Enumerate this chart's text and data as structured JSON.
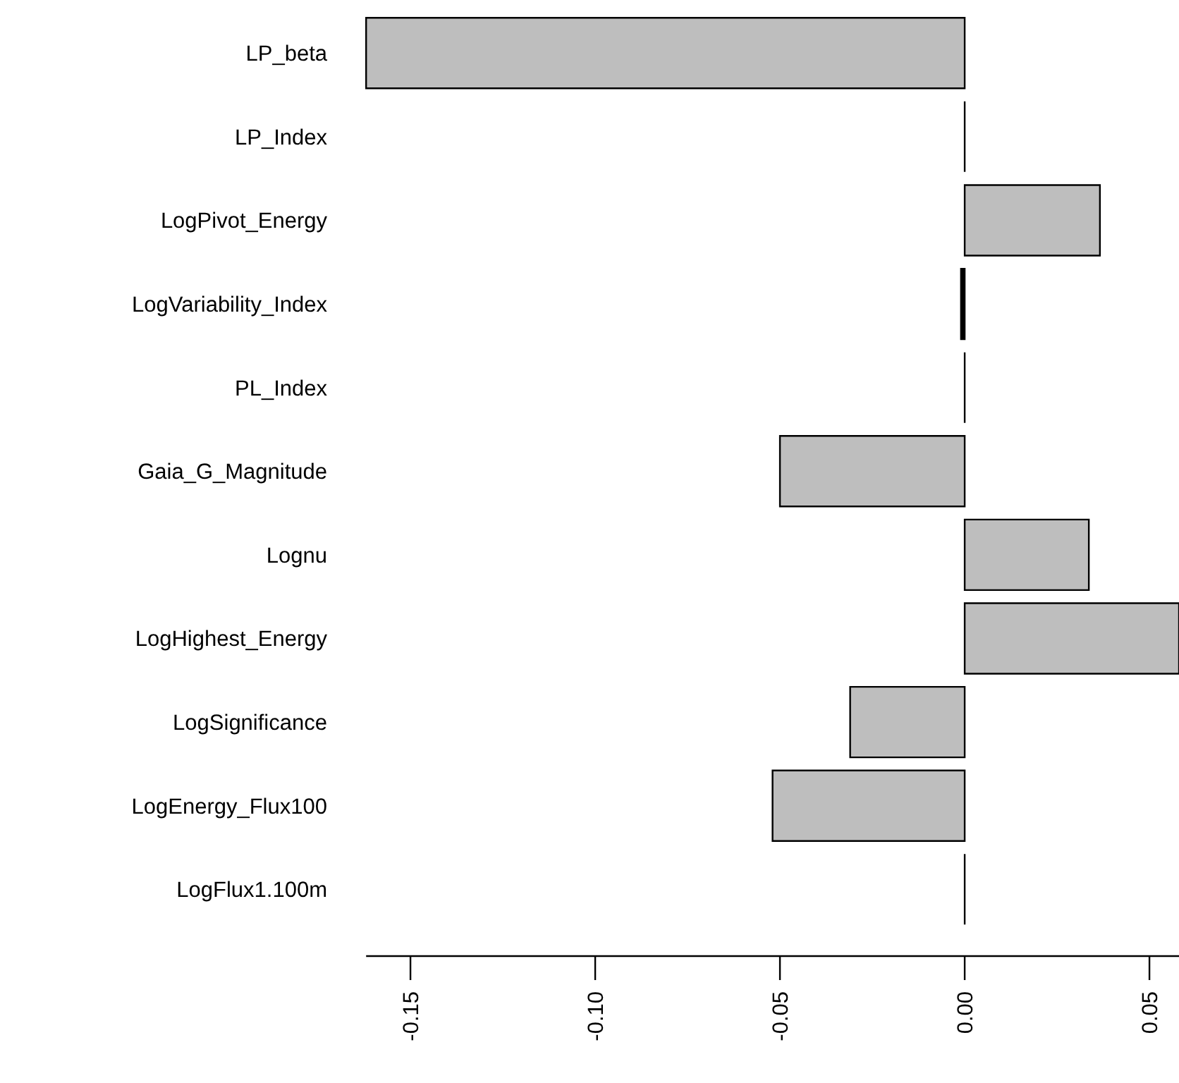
{
  "chart_data": {
    "type": "bar",
    "orientation": "horizontal",
    "categories": [
      "LP_beta",
      "LP_Index",
      "LogPivot_Energy",
      "LogVariability_Index",
      "PL_Index",
      "Gaia_G_Magnitude",
      "Lognu",
      "LogHighest_Energy",
      "LogSignificance",
      "LogEnergy_Flux100",
      "LogFlux1.100m"
    ],
    "values": [
      -0.162,
      0,
      0.0366,
      -0.001,
      0,
      -0.05,
      0.0336,
      0.058,
      -0.031,
      -0.052,
      0
    ],
    "colors": [
      "#bebebe",
      "#000000",
      "#bebebe",
      "#000000",
      "#000000",
      "#bebebe",
      "#bebebe",
      "#bebebe",
      "#bebebe",
      "#bebebe",
      "#000000"
    ],
    "xlim": [
      -0.162,
      0.058
    ],
    "xticks": [
      {
        "value": -0.15,
        "label": "-0.15"
      },
      {
        "value": -0.1,
        "label": "-0.10"
      },
      {
        "value": -0.05,
        "label": "-0.05"
      },
      {
        "value": 0,
        "label": "0.00"
      },
      {
        "value": 0.05,
        "label": "0.05"
      }
    ],
    "grid": false
  }
}
